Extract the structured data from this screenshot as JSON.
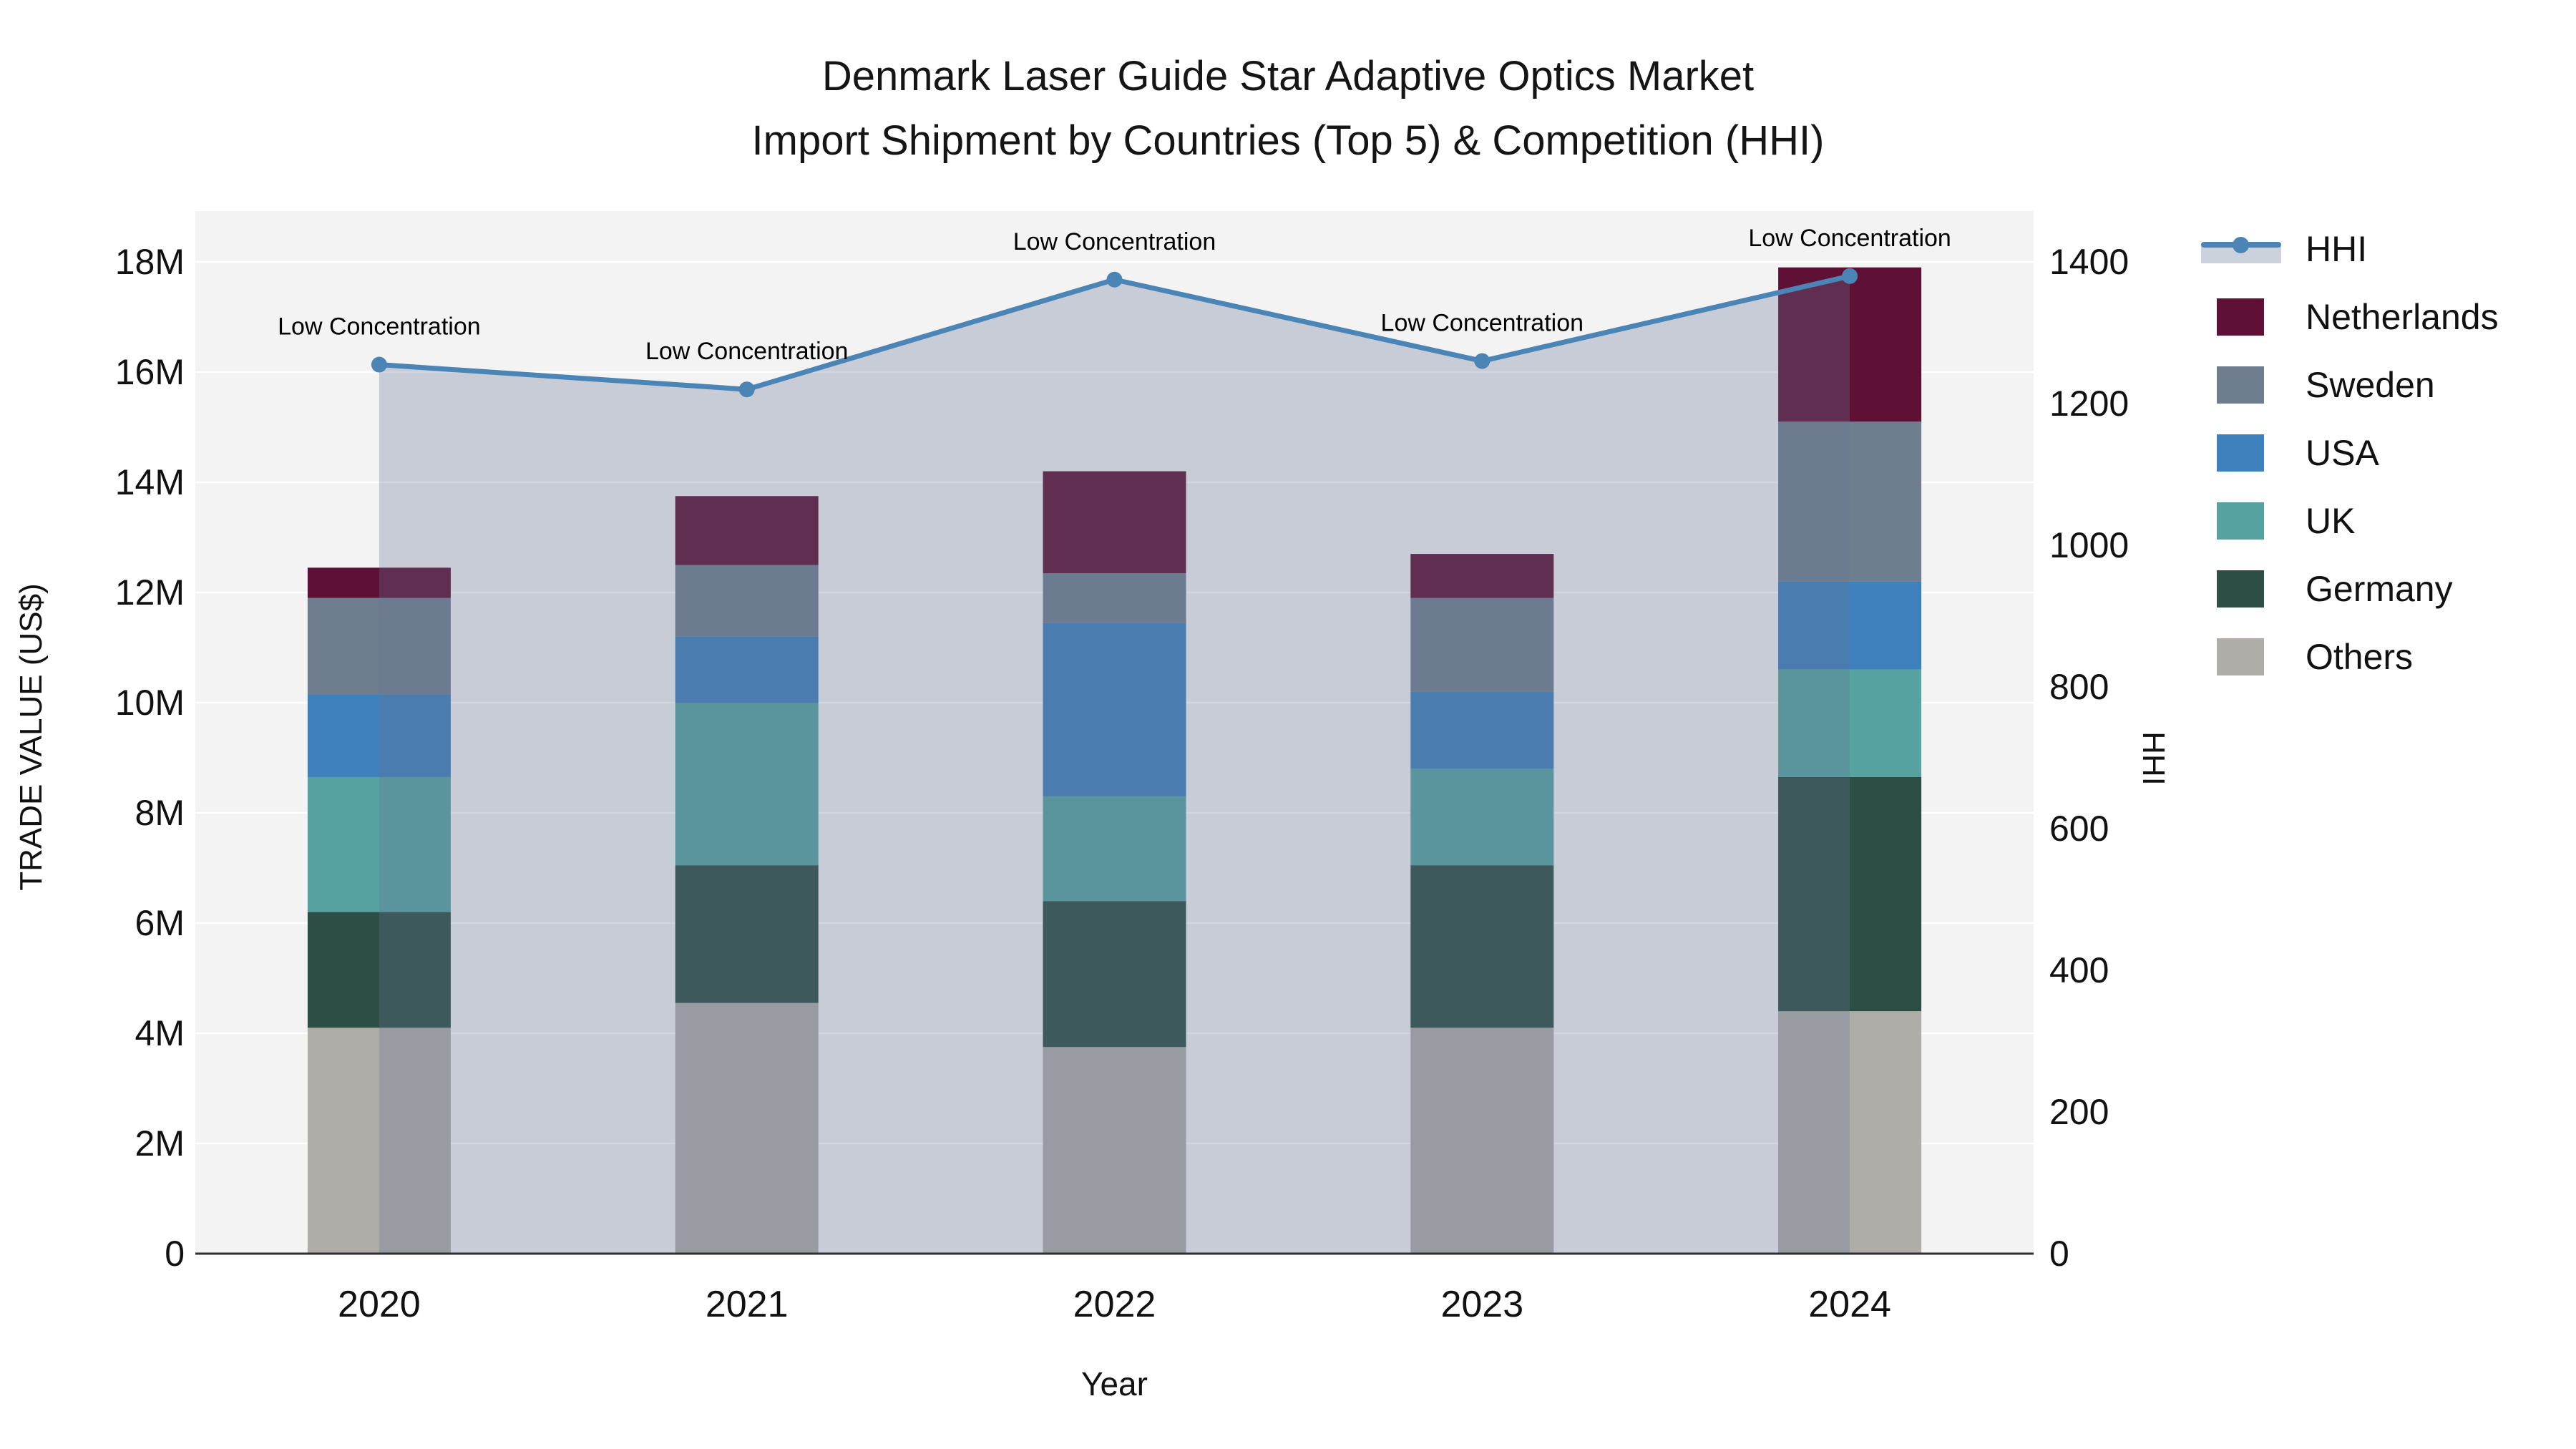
{
  "title": {
    "line1": "Denmark Laser Guide Star Adaptive Optics Market",
    "line2": "Import Shipment by Countries (Top 5) & Competition (HHI)"
  },
  "axes": {
    "x": {
      "title": "Year",
      "categories": [
        "2020",
        "2021",
        "2022",
        "2023",
        "2024"
      ]
    },
    "y_left": {
      "title": "TRADE VALUE (US$)",
      "tick_labels": [
        "0",
        "2M",
        "4M",
        "6M",
        "8M",
        "10M",
        "12M",
        "14M",
        "16M",
        "18M"
      ],
      "tick_step_millions": 2,
      "range_millions": [
        0,
        18
      ]
    },
    "y_right": {
      "title": "HHI",
      "tick_labels": [
        "0",
        "200",
        "400",
        "600",
        "800",
        "1000",
        "1200",
        "1400"
      ],
      "tick_step": 200,
      "range": [
        0,
        1400
      ]
    }
  },
  "legend": {
    "items": [
      {
        "label": "HHI",
        "type": "line",
        "color": "#4a85b6"
      },
      {
        "label": "Netherlands",
        "type": "bar",
        "color": "#5e1134"
      },
      {
        "label": "Sweden",
        "type": "bar",
        "color": "#6f7e8e"
      },
      {
        "label": "USA",
        "type": "bar",
        "color": "#3e80bc"
      },
      {
        "label": "UK",
        "type": "bar",
        "color": "#55a2a0"
      },
      {
        "label": "Germany",
        "type": "bar",
        "color": "#2c4e44"
      },
      {
        "label": "Others",
        "type": "bar",
        "color": "#aeada8"
      }
    ]
  },
  "chart_data": {
    "type": "bar",
    "subtype": "stacked-bars-with-line-overlay",
    "title": "Denmark Laser Guide Star Adaptive Optics Market Import Shipment by Countries (Top 5) & Competition (HHI)",
    "categories": [
      "2020",
      "2021",
      "2022",
      "2023",
      "2024"
    ],
    "bar_value_unit": "US$ millions",
    "series": [
      {
        "name": "Others",
        "color": "#aeada8",
        "values": [
          4.1,
          4.55,
          3.75,
          4.1,
          4.4
        ]
      },
      {
        "name": "Germany",
        "color": "#2c4e44",
        "values": [
          2.1,
          2.5,
          2.65,
          2.95,
          4.25
        ]
      },
      {
        "name": "UK",
        "color": "#55a2a0",
        "values": [
          2.45,
          2.95,
          1.9,
          1.75,
          1.95
        ]
      },
      {
        "name": "USA",
        "color": "#3e80bc",
        "values": [
          1.5,
          1.2,
          3.15,
          1.4,
          1.6
        ]
      },
      {
        "name": "Sweden",
        "color": "#6f7e8e",
        "values": [
          1.75,
          1.3,
          0.9,
          1.7,
          2.9
        ]
      },
      {
        "name": "Netherlands",
        "color": "#5e1134",
        "values": [
          0.55,
          1.25,
          1.85,
          0.8,
          2.8
        ]
      }
    ],
    "bar_totals_millions": [
      12.45,
      13.75,
      14.2,
      12.7,
      17.9
    ],
    "line_series": {
      "name": "HHI",
      "axis": "right",
      "color": "#4a85b6",
      "fill_color": "rgba(104,117,150,0.30)",
      "values": [
        1255,
        1220,
        1375,
        1260,
        1380
      ]
    },
    "annotations": [
      {
        "text": "Low Concentration",
        "category": "2020"
      },
      {
        "text": "Low Concentration",
        "category": "2021"
      },
      {
        "text": "Low Concentration",
        "category": "2022"
      },
      {
        "text": "Low Concentration",
        "category": "2023"
      },
      {
        "text": "Low Concentration",
        "category": "2024"
      }
    ],
    "xlabel": "Year",
    "ylabel": "TRADE VALUE (US$)",
    "y2label": "HHI",
    "ylim_millions": [
      0,
      18.9
    ],
    "y2lim": [
      0,
      1470
    ],
    "grid": true,
    "legend_position": "right"
  },
  "colors": {
    "page_bg": "#ffffff",
    "plot_bg": "#f2f3f2",
    "gridline": "#ffffff",
    "axis_line": "#2f2f2f",
    "text": "#111111"
  }
}
